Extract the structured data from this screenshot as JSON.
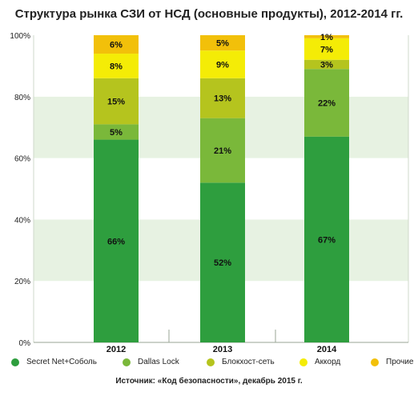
{
  "chart_data": {
    "type": "bar",
    "stacked": true,
    "title": "Структура рынка СЗИ от НСД (основные продукты), 2012-2014 гг.",
    "source": "Источник: «Код безопасности», декабрь 2015 г.",
    "categories": [
      "2012",
      "2013",
      "2014"
    ],
    "ylim": [
      0,
      100
    ],
    "yticks": [
      "0%",
      "20%",
      "40%",
      "60%",
      "80%",
      "100%"
    ],
    "grid": "alternating horizontal bands",
    "legend_position": "bottom",
    "series": [
      {
        "name": "Secret Net+Соболь",
        "color": "#2e9e3e",
        "values": [
          66,
          52,
          67
        ],
        "labels": [
          "66%",
          "52%",
          "67%"
        ]
      },
      {
        "name": "Dallas Lock",
        "color": "#7ab83a",
        "values": [
          5,
          21,
          22
        ],
        "labels": [
          "5%",
          "21%",
          "22%"
        ]
      },
      {
        "name": "Блокхост-сеть",
        "color": "#b5c41e",
        "values": [
          15,
          13,
          3
        ],
        "labels": [
          "15%",
          "13%",
          "3%"
        ]
      },
      {
        "name": "Аккорд",
        "color": "#f4ec06",
        "values": [
          8,
          9,
          7
        ],
        "labels": [
          "8%",
          "9%",
          "7%"
        ]
      },
      {
        "name": "Прочие",
        "color": "#f2c00a",
        "values": [
          6,
          5,
          1
        ],
        "labels": [
          "6%",
          "5%",
          "1%"
        ]
      }
    ]
  }
}
